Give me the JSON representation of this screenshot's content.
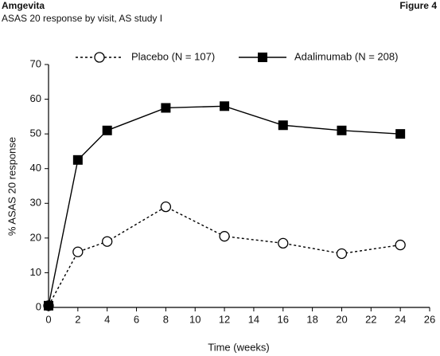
{
  "header": {
    "title": "Amgevita",
    "subtitle": "ASAS 20 response by visit, AS study I",
    "figure": "Figure 4"
  },
  "chart_data": {
    "type": "line",
    "xlabel": "Time (weeks)",
    "ylabel": "% ASAS 20 response",
    "xlim": [
      0,
      26
    ],
    "xticks": [
      0,
      2,
      4,
      6,
      8,
      10,
      12,
      14,
      16,
      18,
      20,
      22,
      24,
      26
    ],
    "ylim": [
      0,
      70
    ],
    "yticks": [
      0,
      10,
      20,
      30,
      40,
      50,
      60,
      70
    ],
    "x": [
      0,
      2,
      4,
      8,
      12,
      16,
      20,
      24
    ],
    "series": [
      {
        "name": "Placebo (N = 107)",
        "color": "#000000",
        "marker": "circle",
        "dashed": true,
        "values": [
          0.5,
          16,
          19,
          29,
          20.5,
          18.5,
          15.5,
          18
        ]
      },
      {
        "name": "Adalimumab (N = 208)",
        "color": "#000000",
        "marker": "square",
        "dashed": false,
        "values": [
          0.5,
          42.5,
          51,
          57.5,
          58,
          52.5,
          51,
          50
        ]
      }
    ]
  }
}
